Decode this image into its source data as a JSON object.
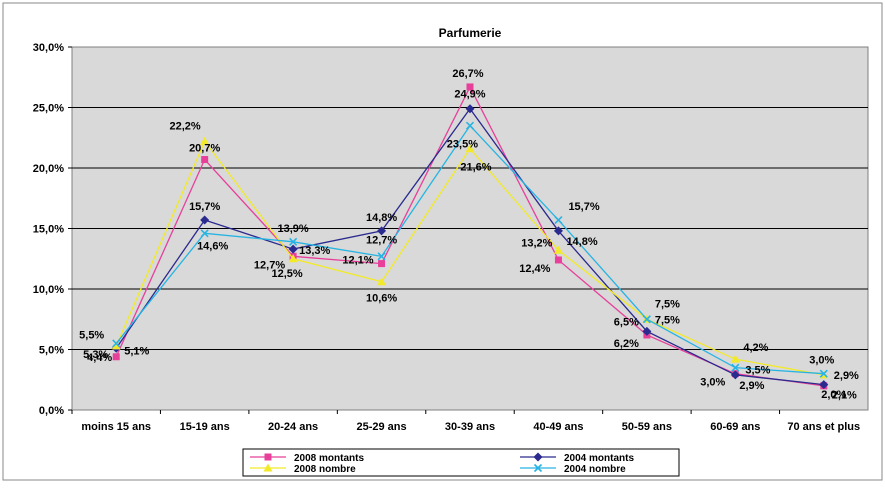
{
  "chart_data": {
    "type": "line",
    "title": "Parfumerie",
    "xlabel": "",
    "ylabel": "",
    "categories": [
      "moins 15 ans",
      "15-19 ans",
      "20-24 ans",
      "25-29 ans",
      "30-39 ans",
      "40-49 ans",
      "50-59 ans",
      "60-69 ans",
      "70 ans et plus"
    ],
    "ylim": [
      0,
      30
    ],
    "yticks": [
      "0,0%",
      "5,0%",
      "10,0%",
      "15,0%",
      "20,0%",
      "25,0%",
      "30,0%"
    ],
    "grid": true,
    "legend_position": "bottom",
    "series": [
      {
        "name": "2008 montants",
        "color": "#e8409a",
        "marker": "square",
        "values": [
          4.4,
          20.7,
          12.7,
          12.1,
          26.7,
          12.4,
          6.2,
          3.0,
          2.0
        ],
        "labels": [
          "4,4%",
          "20,7%",
          "12,7%",
          "12,1%",
          "26,7%",
          "12,4%",
          "6,2%",
          "3,0%",
          "2,0%"
        ]
      },
      {
        "name": "2004 montants",
        "color": "#2a2a8f",
        "marker": "diamond",
        "values": [
          5.1,
          15.7,
          13.3,
          14.8,
          24.9,
          14.8,
          6.5,
          2.9,
          2.1
        ],
        "labels": [
          "5,1%",
          "15,7%",
          "13,3%",
          "14,8%",
          "24,9%",
          "14,8%",
          "6,5%",
          "2,9%",
          "2,1%"
        ]
      },
      {
        "name": "2008 nombre",
        "color": "#f2ea28",
        "marker": "triangle",
        "values": [
          5.3,
          22.2,
          12.5,
          10.6,
          21.6,
          13.2,
          7.5,
          4.2,
          2.9
        ],
        "labels": [
          "5,3%",
          "22,2%",
          "12,5%",
          "10,6%",
          "21,6%",
          "13,2%",
          "7,5%",
          "4,2%",
          "2,9%"
        ]
      },
      {
        "name": "2004 nombre",
        "color": "#27b4e3",
        "marker": "x",
        "values": [
          5.5,
          14.6,
          13.9,
          12.7,
          23.5,
          15.7,
          7.5,
          3.5,
          3.0
        ],
        "labels": [
          "5,5%",
          "14,6%",
          "13,9%",
          "12,7%",
          "23,5%",
          "15,7%",
          "7,5%",
          "3,5%",
          "3,0%"
        ]
      }
    ]
  }
}
